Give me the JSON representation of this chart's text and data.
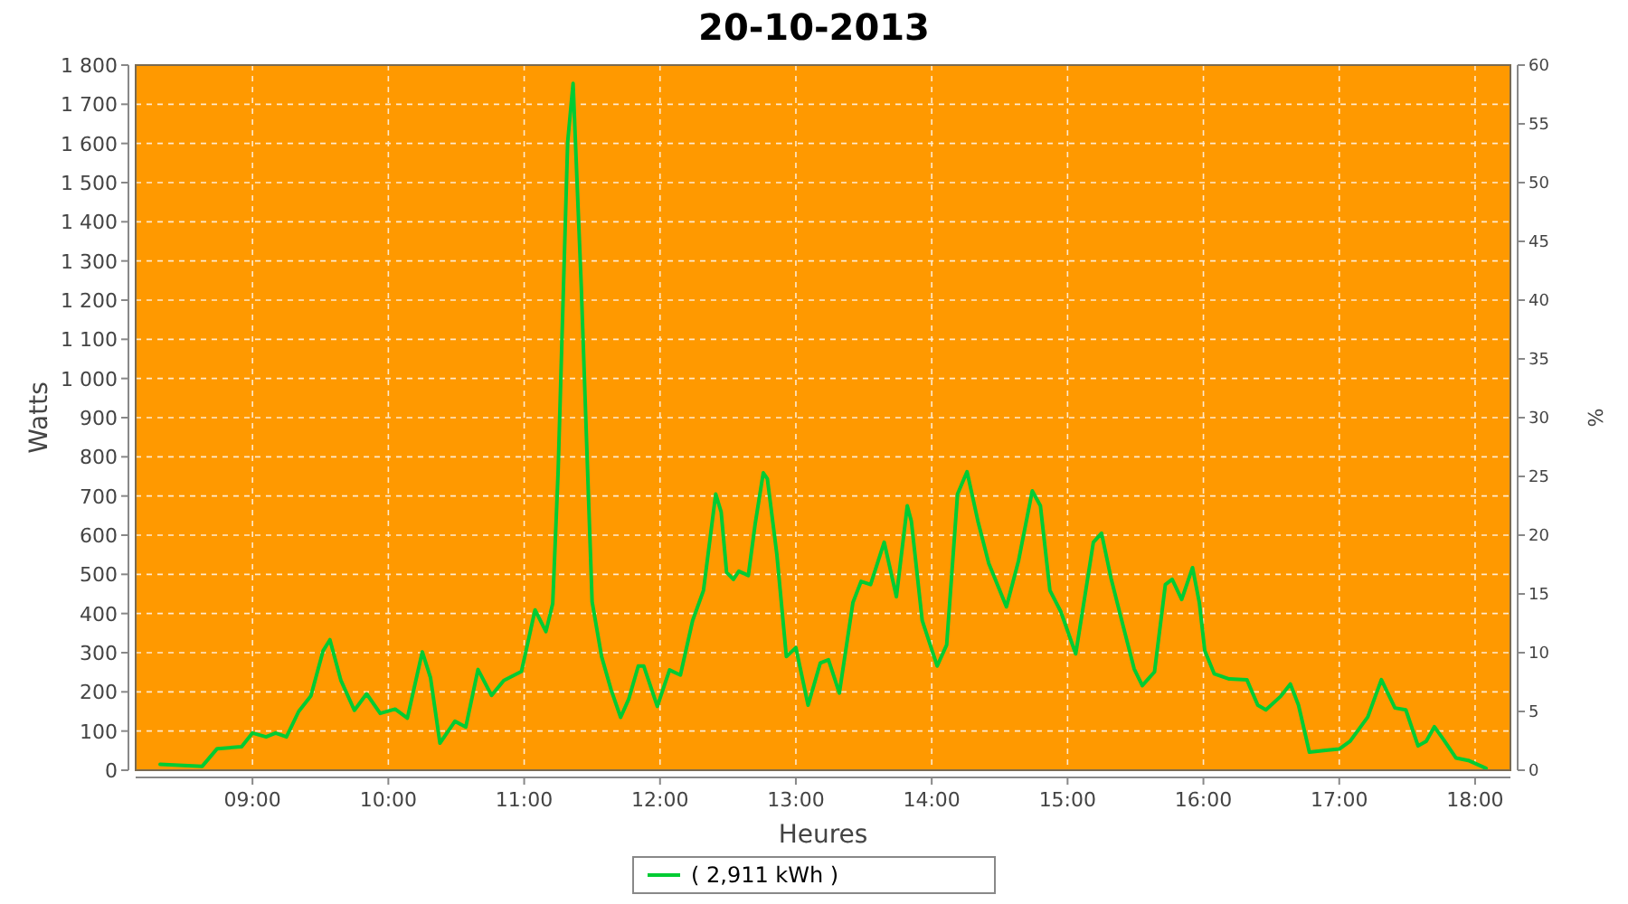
{
  "chart_data": {
    "type": "line",
    "title": "20-10-2013",
    "xlabel": "Heures",
    "ylabel": "Watts",
    "y2label": "%",
    "xlim": [
      8.14,
      18.26
    ],
    "xticks": [
      {
        "value": 9,
        "label": "09:00"
      },
      {
        "value": 10,
        "label": "10:00"
      },
      {
        "value": 11,
        "label": "11:00"
      },
      {
        "value": 12,
        "label": "12:00"
      },
      {
        "value": 13,
        "label": "13:00"
      },
      {
        "value": 14,
        "label": "14:00"
      },
      {
        "value": 15,
        "label": "15:00"
      },
      {
        "value": 16,
        "label": "16:00"
      },
      {
        "value": 17,
        "label": "17:00"
      },
      {
        "value": 18,
        "label": "18:00"
      }
    ],
    "ylim": [
      0,
      1800
    ],
    "yticks": [
      0,
      100,
      200,
      300,
      400,
      500,
      600,
      700,
      800,
      900,
      {
        "value": 1000,
        "label": "1 000"
      },
      {
        "value": 1100,
        "label": "1 100"
      },
      {
        "value": 1200,
        "label": "1 200"
      },
      {
        "value": 1300,
        "label": "1 300"
      },
      {
        "value": 1400,
        "label": "1 400"
      },
      {
        "value": 1500,
        "label": "1 500"
      },
      {
        "value": 1600,
        "label": "1 600"
      },
      {
        "value": 1700,
        "label": "1 700"
      },
      {
        "value": 1800,
        "label": "1 800"
      }
    ],
    "y2lim": [
      0,
      60
    ],
    "y2ticks": [
      0,
      5,
      10,
      15,
      20,
      25,
      30,
      35,
      40,
      45,
      50,
      55,
      60
    ],
    "grid": true,
    "legend": "bottom",
    "marker": "none",
    "line_style": "solid",
    "series": [
      {
        "name": "( 2,911 kWh )",
        "color": "#00cc33",
        "x": [
          8.32,
          8.63,
          8.74,
          8.92,
          9.0,
          9.1,
          9.17,
          9.25,
          9.34,
          9.43,
          9.52,
          9.57,
          9.65,
          9.75,
          9.84,
          9.94,
          10.05,
          10.14,
          10.25,
          10.31,
          10.38,
          10.49,
          10.57,
          10.66,
          10.76,
          10.85,
          10.98,
          11.08,
          11.16,
          11.21,
          11.25,
          11.32,
          11.36,
          11.42,
          11.5,
          11.57,
          11.64,
          11.71,
          11.77,
          11.84,
          11.88,
          11.98,
          12.07,
          12.15,
          12.24,
          12.32,
          12.41,
          12.45,
          12.49,
          12.54,
          12.58,
          12.65,
          12.7,
          12.76,
          12.79,
          12.86,
          12.93,
          13.0,
          13.09,
          13.18,
          13.24,
          13.32,
          13.42,
          13.48,
          13.55,
          13.65,
          13.74,
          13.82,
          13.85,
          13.93,
          14.04,
          14.11,
          14.19,
          14.26,
          14.34,
          14.42,
          14.55,
          14.64,
          14.74,
          14.8,
          14.87,
          14.95,
          15.06,
          15.12,
          15.19,
          15.25,
          15.32,
          15.41,
          15.49,
          15.55,
          15.64,
          15.72,
          15.77,
          15.84,
          15.92,
          15.97,
          16.01,
          16.08,
          16.19,
          16.32,
          16.4,
          16.46,
          16.57,
          16.64,
          16.7,
          16.78,
          16.9,
          17.0,
          17.08,
          17.21,
          17.31,
          17.41,
          17.49,
          17.58,
          17.64,
          17.7,
          17.77,
          17.86,
          17.95,
          18.08
        ],
        "values": [
          15,
          10,
          55,
          60,
          95,
          85,
          95,
          85,
          150,
          190,
          305,
          333,
          230,
          153,
          195,
          145,
          156,
          133,
          302,
          237,
          69,
          125,
          110,
          257,
          191,
          229,
          252,
          409,
          354,
          425,
          764,
          1603,
          1753,
          1237,
          430,
          290,
          205,
          135,
          182,
          266,
          266,
          163,
          256,
          243,
          382,
          459,
          705,
          659,
          505,
          487,
          508,
          497,
          628,
          759,
          744,
          551,
          290,
          313,
          166,
          274,
          282,
          197,
          428,
          482,
          474,
          582,
          443,
          675,
          636,
          382,
          266,
          320,
          705,
          762,
          636,
          528,
          417,
          536,
          713,
          675,
          459,
          405,
          297,
          428,
          582,
          605,
          490,
          367,
          259,
          216,
          251,
          474,
          487,
          436,
          517,
          428,
          305,
          246,
          233,
          231,
          166,
          154,
          189,
          220,
          166,
          46,
          51,
          54,
          74,
          136,
          231,
          159,
          154,
          62,
          74,
          111,
          77,
          31,
          25,
          5
        ]
      }
    ]
  }
}
